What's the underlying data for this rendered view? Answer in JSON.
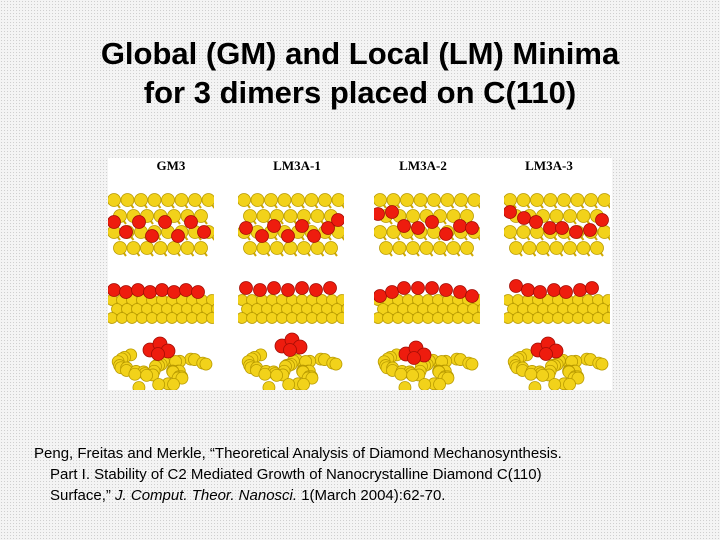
{
  "title": {
    "line1": "Global (GM) and Local (LM) Minima",
    "line2": "for 3 dimers placed on C(110)"
  },
  "figure": {
    "columns": [
      "GM3",
      "LM3A-1",
      "LM3A-2",
      "LM3A-3"
    ],
    "colors": {
      "carbon": "#f2d21a",
      "carbon_edge": "#b89a00",
      "dimer": "#ee1c0e",
      "dimer_edge": "#a30d05"
    }
  },
  "citation": {
    "authors": "Peng, Freitas and Merkle, “Theoretical Analysis of Diamond Mechanosynthesis.",
    "line2": "Part I. Stability of C2 Mediated Growth of Nanocrystalline Diamond C(110)",
    "line3_a": "Surface,” ",
    "journal": "J. Comput. Theor. Nanosci.",
    "line3_b": " 1(March 2004):62-70."
  }
}
